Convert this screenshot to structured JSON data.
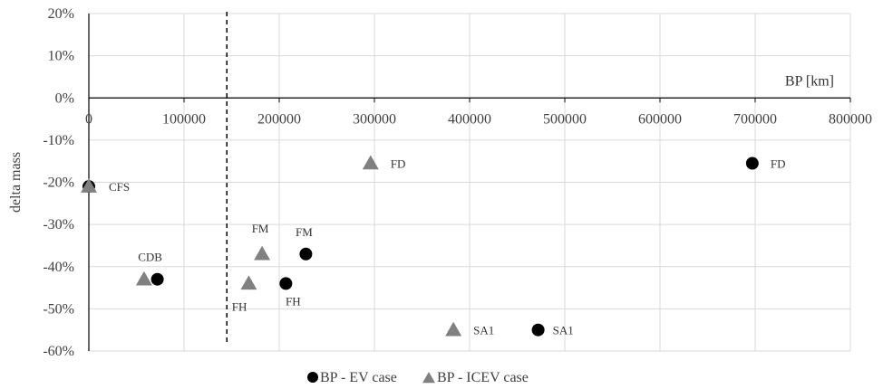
{
  "chart_data": {
    "type": "scatter",
    "xlabel": "BP [km]",
    "ylabel": "delta mass",
    "xlim": [
      0,
      800000
    ],
    "ylim": [
      -60,
      20
    ],
    "x_ticks": [
      0,
      100000,
      200000,
      300000,
      400000,
      500000,
      600000,
      700000,
      800000
    ],
    "x_tick_labels": [
      "0",
      "100000",
      "200000",
      "300000",
      "400000",
      "500000",
      "600000",
      "700000",
      "800000"
    ],
    "y_ticks": [
      20,
      10,
      0,
      -10,
      -20,
      -30,
      -40,
      -50,
      -60
    ],
    "y_tick_labels": [
      "20%",
      "10%",
      "0%",
      "-10%",
      "-20%",
      "-30%",
      "-40%",
      "-50%",
      "-60%"
    ],
    "grid": true,
    "legend_position": "bottom",
    "reference_line": {
      "x": 145000,
      "style": "dashed"
    },
    "series": [
      {
        "name": "BP - EV case",
        "marker": "circle",
        "color": "#000000",
        "points": [
          {
            "x": 0,
            "y": -21,
            "label": "CFS"
          },
          {
            "x": 72000,
            "y": -43,
            "label": "CDB"
          },
          {
            "x": 207000,
            "y": -44,
            "label": "FH"
          },
          {
            "x": 228000,
            "y": -37,
            "label": "FM"
          },
          {
            "x": 697000,
            "y": -15.5,
            "label": "FD"
          },
          {
            "x": 472000,
            "y": -55,
            "label": "SA1"
          }
        ]
      },
      {
        "name": "BP - ICEV case",
        "marker": "triangle",
        "color": "#808080",
        "points": [
          {
            "x": 0,
            "y": -21,
            "label": ""
          },
          {
            "x": 58000,
            "y": -43,
            "label": ""
          },
          {
            "x": 168000,
            "y": -44,
            "label": "FH"
          },
          {
            "x": 182000,
            "y": -37,
            "label": "FM"
          },
          {
            "x": 296000,
            "y": -15.5,
            "label": "FD"
          },
          {
            "x": 383000,
            "y": -55,
            "label": "SA1"
          }
        ]
      }
    ]
  }
}
